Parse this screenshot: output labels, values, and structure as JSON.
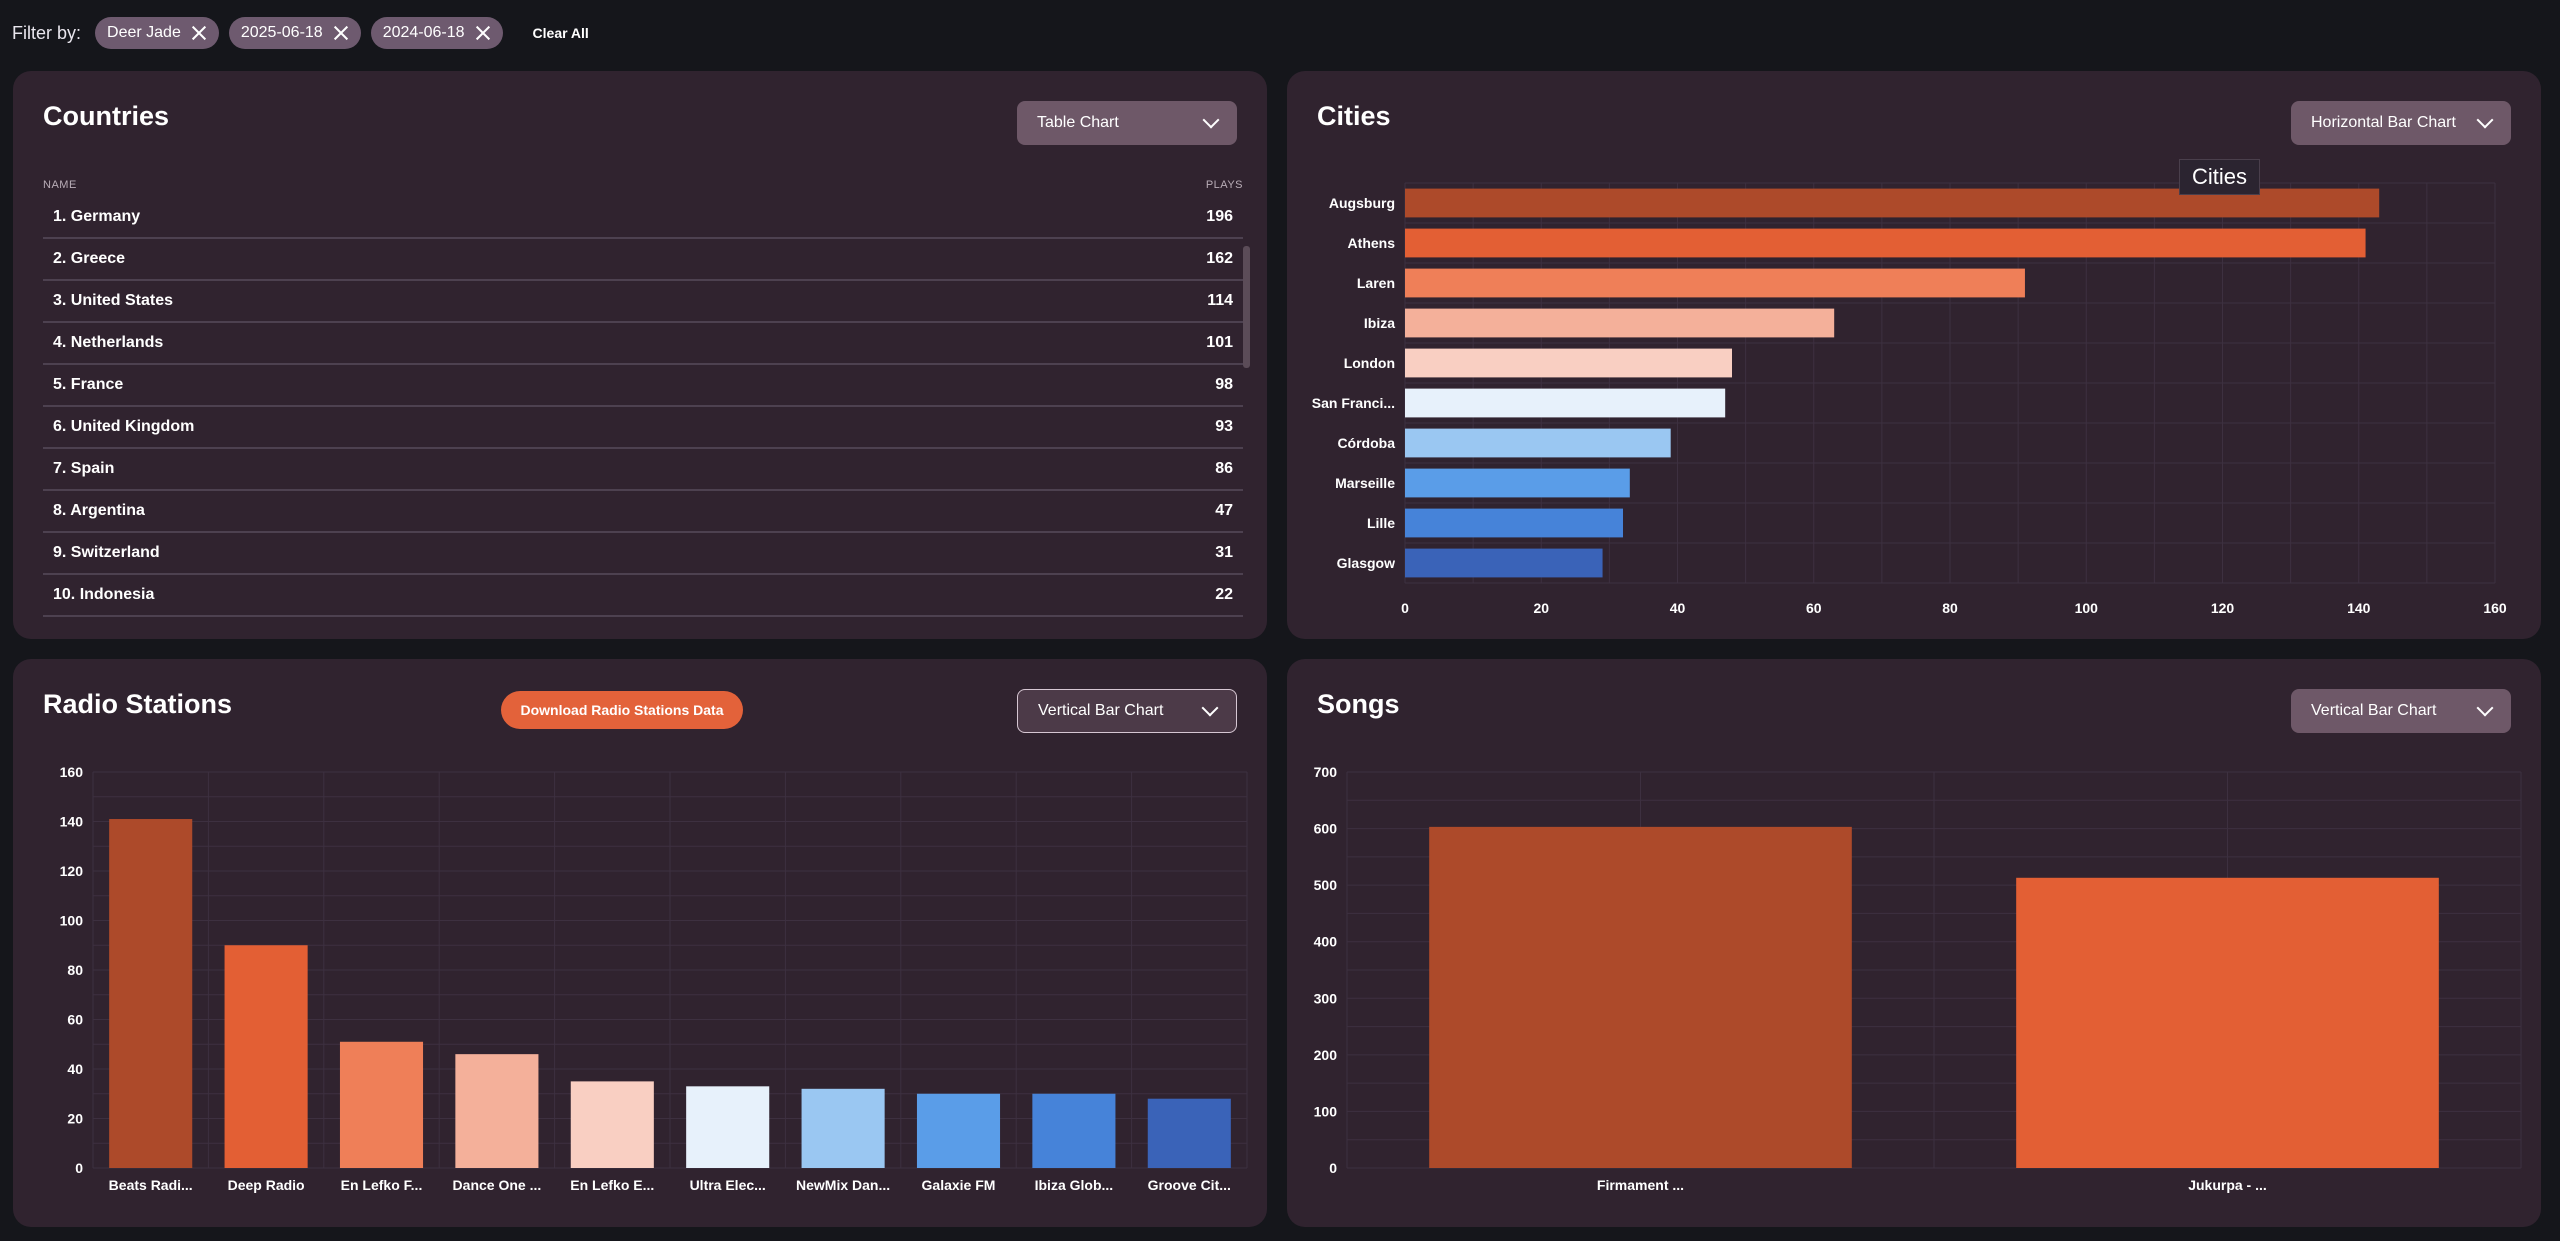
{
  "filter": {
    "label": "Filter by:",
    "chips": [
      {
        "label": "Deer Jade"
      },
      {
        "label": "2025-06-18"
      },
      {
        "label": "2024-06-18"
      }
    ],
    "clear_all": "Clear All"
  },
  "countries": {
    "title": "Countries",
    "chart_type": "Table Chart",
    "col_name": "NAME",
    "col_plays": "PLAYS",
    "rows": [
      {
        "name": "1. Germany",
        "plays": "196"
      },
      {
        "name": "2. Greece",
        "plays": "162"
      },
      {
        "name": "3. United States",
        "plays": "114"
      },
      {
        "name": "4. Netherlands",
        "plays": "101"
      },
      {
        "name": "5. France",
        "plays": "98"
      },
      {
        "name": "6. United Kingdom",
        "plays": "93"
      },
      {
        "name": "7. Spain",
        "plays": "86"
      },
      {
        "name": "8. Argentina",
        "plays": "47"
      },
      {
        "name": "9. Switzerland",
        "plays": "31"
      },
      {
        "name": "10. Indonesia",
        "plays": "22"
      }
    ]
  },
  "cities": {
    "title": "Cities",
    "chart_type": "Horizontal Bar Chart",
    "tooltip": "Cities"
  },
  "radio": {
    "title": "Radio Stations",
    "download_label": "Download Radio Stations Data",
    "chart_type": "Vertical Bar Chart"
  },
  "songs": {
    "title": "Songs",
    "chart_type": "Vertical Bar Chart"
  },
  "colors": [
    "#ad4a2a",
    "#e35f34",
    "#ef7f58",
    "#f4b09a",
    "#f9cfc2",
    "#e7f1fb",
    "#9ac7f2",
    "#5a9de8",
    "#4683d9",
    "#3a63b8"
  ],
  "chart_data": [
    {
      "type": "bar",
      "orientation": "horizontal",
      "categories": [
        "Augsburg",
        "Athens",
        "Laren",
        "Ibiza",
        "London",
        "San Franci...",
        "Córdoba",
        "Marseille",
        "Lille",
        "Glasgow"
      ],
      "values": [
        143,
        141,
        91,
        63,
        48,
        47,
        39,
        33,
        32,
        29
      ],
      "xlim": [
        0,
        160
      ],
      "xticks": [
        "0",
        "20",
        "40",
        "60",
        "80",
        "100",
        "120",
        "140",
        "160"
      ],
      "grid": true
    },
    {
      "type": "bar",
      "orientation": "vertical",
      "categories": [
        "Beats Radi...",
        "Deep Radio",
        "En Lefko F...",
        "Dance One ...",
        "En Lefko E...",
        "Ultra Elec...",
        "NewMix Dan...",
        "Galaxie FM",
        "Ibiza Glob...",
        "Groove Cit..."
      ],
      "values": [
        141,
        90,
        51,
        46,
        35,
        33,
        32,
        30,
        30,
        28
      ],
      "ylim": [
        0,
        160
      ],
      "yticks": [
        "0",
        "20",
        "40",
        "60",
        "80",
        "100",
        "120",
        "140",
        "160"
      ],
      "grid": true
    },
    {
      "type": "bar",
      "orientation": "vertical",
      "categories": [
        "Firmament ...",
        "Jukurpa - ..."
      ],
      "values": [
        603,
        513
      ],
      "ylim": [
        0,
        700
      ],
      "yticks": [
        "0",
        "100",
        "200",
        "300",
        "400",
        "500",
        "600",
        "700"
      ],
      "grid": true
    }
  ]
}
